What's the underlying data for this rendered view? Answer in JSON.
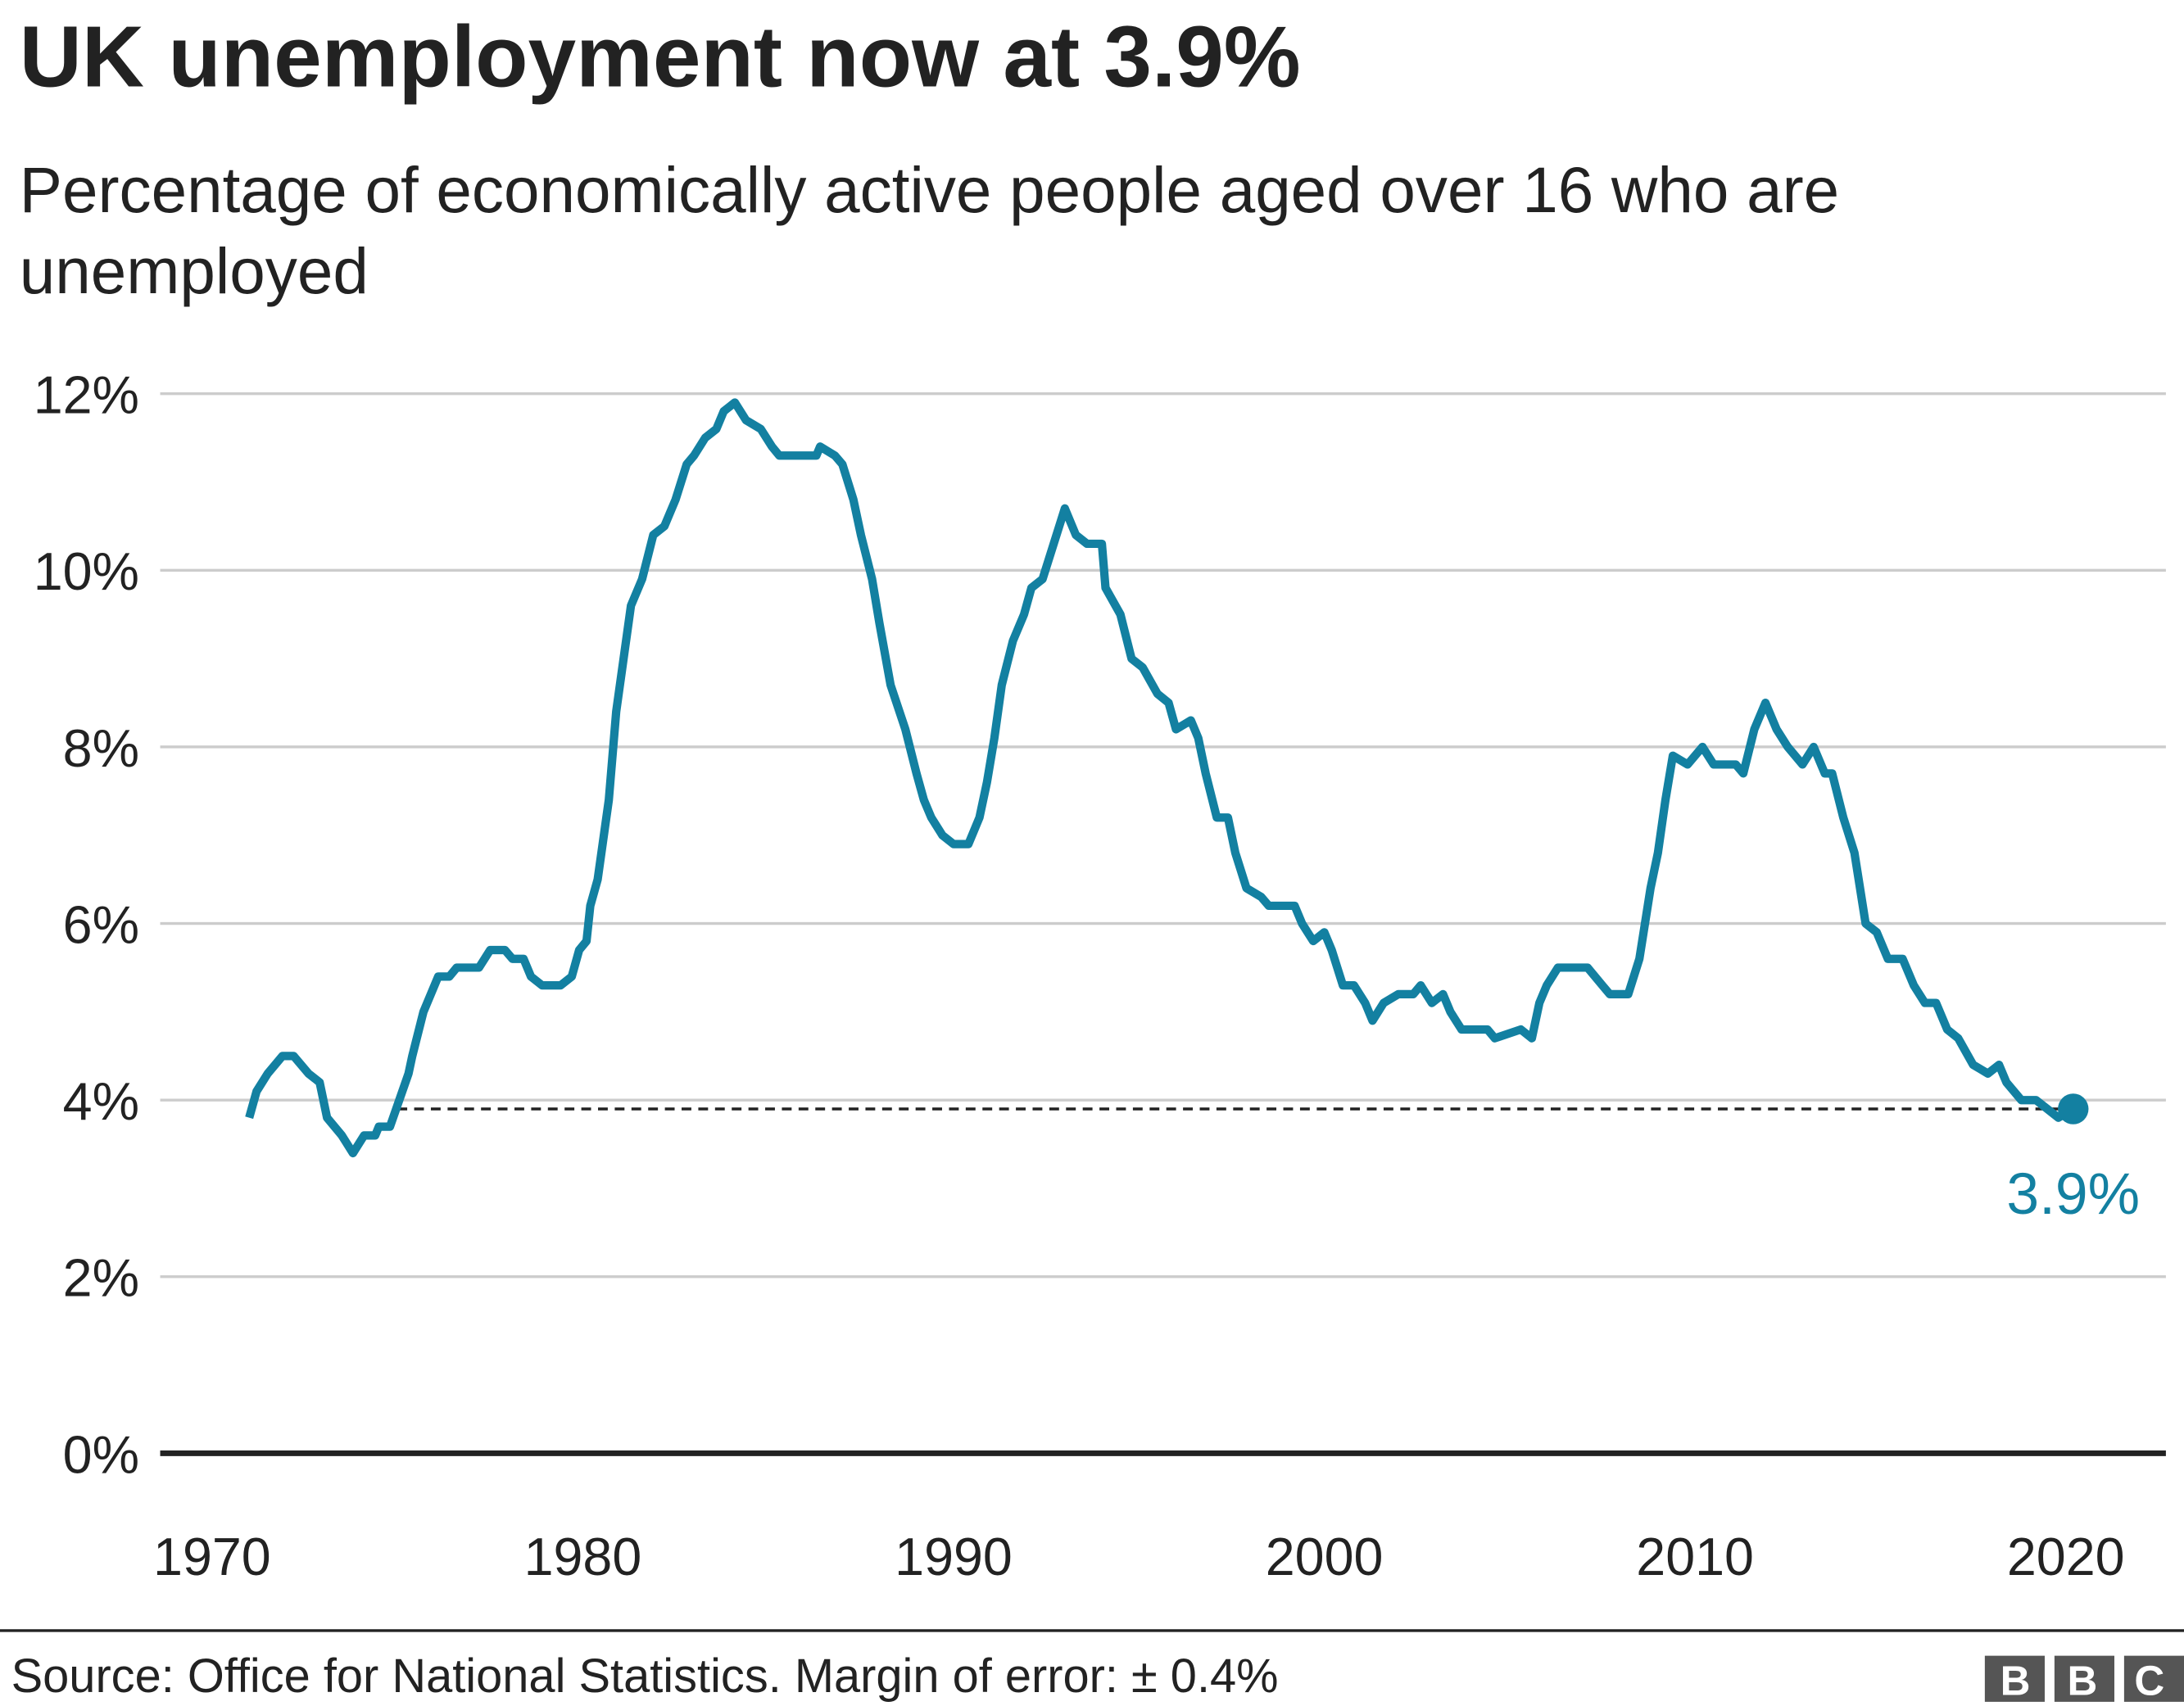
{
  "chart_data": {
    "type": "line",
    "title": "UK unemployment now at 3.9%",
    "subtitle": "Percentage of economically active people aged over 16 who are unemployed",
    "source": "Source: Office for National Statistics. Margin of error: ± 0.4%",
    "logo": "BBC",
    "color": "#1380a1",
    "x": [
      1971.0,
      1971.2,
      1971.5,
      1971.9,
      1972.2,
      1972.6,
      1972.9,
      1973.1,
      1973.5,
      1973.8,
      1974.1,
      1974.4,
      1974.5,
      1974.8,
      1975.3,
      1975.4,
      1975.7,
      1976.1,
      1976.4,
      1976.6,
      1977.2,
      1977.5,
      1977.9,
      1978.1,
      1978.4,
      1978.6,
      1978.9,
      1979.4,
      1979.7,
      1979.9,
      1980.1,
      1980.2,
      1980.4,
      1980.7,
      1980.9,
      1981.1,
      1981.3,
      1981.6,
      1981.9,
      1982.2,
      1982.5,
      1982.8,
      1983.0,
      1983.3,
      1983.6,
      1983.8,
      1984.1,
      1984.4,
      1984.8,
      1985.1,
      1985.3,
      1986.3,
      1986.4,
      1986.8,
      1987.0,
      1987.3,
      1987.5,
      1987.8,
      1988.0,
      1988.3,
      1988.7,
      1989.0,
      1989.2,
      1989.4,
      1989.7,
      1990.0,
      1990.4,
      1990.7,
      1990.9,
      1991.1,
      1991.3,
      1991.6,
      1991.9,
      1992.1,
      1992.4,
      1992.7,
      1993.0,
      1993.3,
      1993.6,
      1994.0,
      1994.1,
      1994.5,
      1994.8,
      1995.1,
      1995.5,
      1995.8,
      1996.0,
      1996.4,
      1996.6,
      1996.8,
      1997.1,
      1997.4,
      1997.6,
      1997.9,
      1998.3,
      1998.5,
      1999.2,
      1999.4,
      1999.7,
      2000.0,
      2000.2,
      2000.5,
      2000.8,
      2001.1,
      2001.3,
      2001.6,
      2002.0,
      2002.4,
      2002.6,
      2002.9,
      2003.2,
      2003.4,
      2003.7,
      2004.4,
      2004.6,
      2005.3,
      2005.6,
      2005.8,
      2006.0,
      2006.3,
      2007.1,
      2007.5,
      2007.7,
      2008.2,
      2008.5,
      2008.8,
      2009.0,
      2009.2,
      2009.4,
      2009.8,
      2010.2,
      2010.5,
      2011.1,
      2011.3,
      2011.6,
      2011.9,
      2012.2,
      2012.5,
      2012.9,
      2013.2,
      2013.5,
      2013.7,
      2014.0,
      2014.3,
      2014.6,
      2014.9,
      2015.2,
      2015.6,
      2015.9,
      2016.2,
      2016.5,
      2016.8,
      2017.1,
      2017.5,
      2017.9,
      2018.2,
      2018.4,
      2018.8,
      2019.2,
      2019.5,
      2019.8,
      2020.2
    ],
    "values": [
      3.8,
      4.1,
      4.3,
      4.5,
      4.5,
      4.3,
      4.2,
      3.8,
      3.6,
      3.4,
      3.6,
      3.6,
      3.7,
      3.7,
      4.3,
      4.5,
      5.0,
      5.4,
      5.4,
      5.5,
      5.5,
      5.7,
      5.7,
      5.6,
      5.6,
      5.4,
      5.3,
      5.3,
      5.4,
      5.7,
      5.8,
      6.2,
      6.5,
      7.4,
      8.4,
      9.0,
      9.6,
      9.9,
      10.4,
      10.5,
      10.8,
      11.2,
      11.3,
      11.5,
      11.6,
      11.8,
      11.9,
      11.7,
      11.6,
      11.4,
      11.3,
      11.3,
      11.4,
      11.3,
      11.2,
      10.8,
      10.4,
      9.9,
      9.4,
      8.7,
      8.2,
      7.7,
      7.4,
      7.2,
      7.0,
      6.9,
      6.9,
      7.2,
      7.6,
      8.1,
      8.7,
      9.2,
      9.5,
      9.8,
      9.9,
      10.3,
      10.7,
      10.4,
      10.3,
      10.3,
      9.8,
      9.5,
      9.0,
      8.9,
      8.6,
      8.5,
      8.2,
      8.3,
      8.1,
      7.7,
      7.2,
      7.2,
      6.8,
      6.4,
      6.3,
      6.2,
      6.2,
      6.0,
      5.8,
      5.9,
      5.7,
      5.3,
      5.3,
      5.1,
      4.9,
      5.1,
      5.2,
      5.2,
      5.3,
      5.1,
      5.2,
      5.0,
      4.8,
      4.8,
      4.7,
      4.8,
      4.7,
      5.1,
      5.3,
      5.5,
      5.5,
      5.3,
      5.2,
      5.2,
      5.6,
      6.4,
      6.8,
      7.4,
      7.9,
      7.8,
      8.0,
      7.8,
      7.8,
      7.7,
      8.2,
      8.5,
      8.2,
      8.0,
      7.8,
      8.0,
      7.7,
      7.7,
      7.2,
      6.8,
      6.0,
      5.9,
      5.6,
      5.6,
      5.3,
      5.1,
      5.1,
      4.8,
      4.7,
      4.4,
      4.3,
      4.4,
      4.2,
      4.0,
      4.0,
      3.9,
      3.8,
      3.9
    ],
    "reference_line": {
      "value": 3.9,
      "x_from": 1975,
      "label": "3.9%"
    },
    "xlim": [
      1968.6,
      2022.7
    ],
    "xticks": [
      1970,
      1980,
      1990,
      2000,
      2010,
      2020
    ],
    "ylim": [
      0,
      12
    ],
    "yticks": [
      {
        "value": 0,
        "label": "0%"
      },
      {
        "value": 2,
        "label": "2%"
      },
      {
        "value": 4,
        "label": "4%"
      },
      {
        "value": 6,
        "label": "6%"
      },
      {
        "value": 8,
        "label": "8%"
      },
      {
        "value": 10,
        "label": "10%"
      },
      {
        "value": 12,
        "label": "12%"
      }
    ],
    "grid": true
  }
}
